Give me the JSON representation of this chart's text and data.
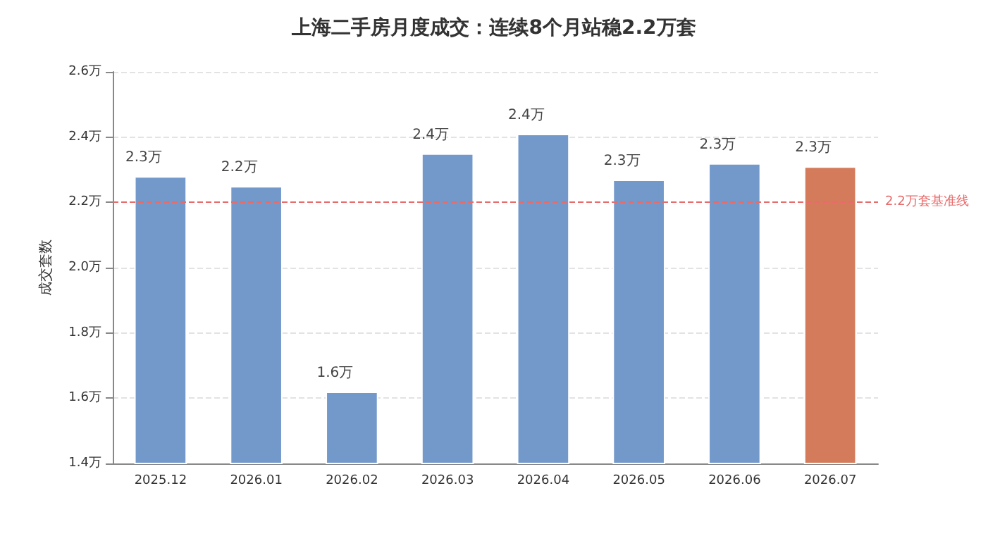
{
  "chart_data": {
    "type": "bar",
    "title": "上海二手房月度成交：连续8个月站稳2.2万套",
    "ylabel": "成交套数",
    "categories": [
      "2025.12",
      "2026.01",
      "2026.02",
      "2026.03",
      "2026.04",
      "2026.05",
      "2026.06",
      "2026.07"
    ],
    "values": [
      2.28,
      2.25,
      1.62,
      2.35,
      2.41,
      2.27,
      2.32,
      2.31
    ],
    "colors": [
      "#7399cb",
      "#7399cb",
      "#7399cb",
      "#7399cb",
      "#7399cb",
      "#7399cb",
      "#7399cb",
      "#d47b5b"
    ],
    "value_labels": [
      "2.3万",
      "2.2万",
      "1.6万",
      "2.4万",
      "2.4万",
      "2.3万",
      "2.3万",
      "2.3万"
    ],
    "ylim": [
      1.4,
      2.6
    ],
    "yticks": [
      {
        "value": 1.4,
        "label": "1.4万"
      },
      {
        "value": 1.6,
        "label": "1.6万"
      },
      {
        "value": 1.8,
        "label": "1.8万"
      },
      {
        "value": 2.0,
        "label": "2.0万"
      },
      {
        "value": 2.2,
        "label": "2.2万"
      },
      {
        "value": 2.4,
        "label": "2.4万"
      },
      {
        "value": 2.6,
        "label": "2.6万"
      }
    ],
    "ref_lines": [
      {
        "axis": "y",
        "value": 2.2,
        "label": "2.2万套基准线",
        "color": "#e86a6a",
        "line_style": "dashed"
      }
    ],
    "grid": "y"
  }
}
